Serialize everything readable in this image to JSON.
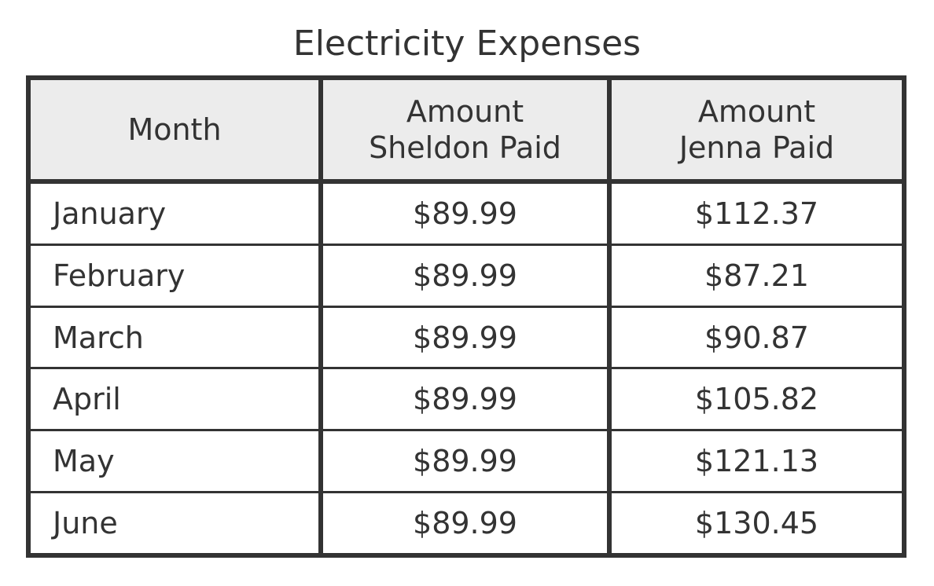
{
  "title": "Electricity Expenses",
  "headers": {
    "month": "Month",
    "sheldon_line1": "Amount",
    "sheldon_line2": "Sheldon Paid",
    "jenna_line1": "Amount",
    "jenna_line2": "Jenna Paid"
  },
  "rows": [
    {
      "month": "January",
      "sheldon": "$89.99",
      "jenna": "$112.37"
    },
    {
      "month": "February",
      "sheldon": "$89.99",
      "jenna": "$87.21"
    },
    {
      "month": "March",
      "sheldon": "$89.99",
      "jenna": "$90.87"
    },
    {
      "month": "April",
      "sheldon": "$89.99",
      "jenna": "$105.82"
    },
    {
      "month": "May",
      "sheldon": "$89.99",
      "jenna": "$121.13"
    },
    {
      "month": "June",
      "sheldon": "$89.99",
      "jenna": "$130.45"
    }
  ]
}
